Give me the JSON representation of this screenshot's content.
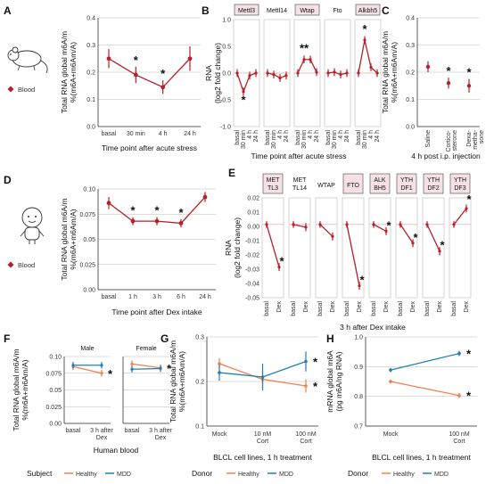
{
  "colors": {
    "red": "#b5202a",
    "healthy": "#f08050",
    "mdd": "#1f7fb8",
    "grid": "#bbbbbb",
    "highlight": "#f5e1e6"
  },
  "panelA": {
    "letter": "A",
    "ylabel": [
      "Total RNA global m6A/m",
      "%(m6A+m6Am/A)"
    ],
    "xlabel": "Time point after acute stress",
    "legend": "Blood",
    "icon": "mouse-icon",
    "chart_data": {
      "type": "line",
      "categories": [
        "basal",
        "30 min",
        "4 h",
        "24 h"
      ],
      "values": [
        0.25,
        0.19,
        0.145,
        0.25
      ],
      "err": [
        0.035,
        0.03,
        0.025,
        0.045
      ],
      "ylim": [
        0,
        0.4
      ],
      "yticks": [
        "0.0",
        "0.1",
        "0.2",
        "0.3",
        "0.4"
      ],
      "stars": [
        "",
        "*",
        "*",
        ""
      ]
    }
  },
  "panelB": {
    "letter": "B",
    "ylabel": [
      "RNA",
      "(log2 fold change)"
    ],
    "xlabel": "Time point after acute stress",
    "chart_data": {
      "type": "line",
      "ylim": [
        -1.1,
        1.1
      ],
      "yticks": [
        "-1.0",
        "-0.5",
        "0.0",
        "0.5",
        "1.0"
      ],
      "categories": [
        "basal",
        "30 min",
        "4 h",
        "24 h"
      ],
      "facets": [
        {
          "name": "Mettl3",
          "highlight": true,
          "values": [
            0,
            -0.38,
            -0.05,
            0
          ],
          "stars": [
            "",
            "*",
            "",
            ""
          ]
        },
        {
          "name": "Mettl14",
          "highlight": false,
          "values": [
            0,
            -0.03,
            -0.1,
            -0.05
          ],
          "stars": [
            "",
            "",
            "",
            ""
          ]
        },
        {
          "name": "Wtap",
          "highlight": true,
          "values": [
            0,
            0.28,
            0.28,
            0.02
          ],
          "stars": [
            "",
            "**",
            "",
            ""
          ]
        },
        {
          "name": "Fto",
          "highlight": false,
          "values": [
            0,
            0.02,
            -0.03,
            0.0
          ],
          "stars": [
            "",
            "",
            "",
            ""
          ]
        },
        {
          "name": "Alkbh5",
          "highlight": true,
          "values": [
            0,
            0.68,
            0.12,
            0.0
          ],
          "stars": [
            "",
            "*",
            "",
            ""
          ]
        }
      ]
    }
  },
  "panelC": {
    "letter": "C",
    "ylabel": [
      "Total RNA global m6A/m",
      "%(m6A+m6Am/A)"
    ],
    "xlabel": "4 h post i.p. injection",
    "chart_data": {
      "type": "scatter",
      "categories": [
        "Saline",
        "Cortico-sterone",
        "Dexa-metha-sone"
      ],
      "catlines": [
        [
          "Saline"
        ],
        [
          "Cortico-",
          "sterone"
        ],
        [
          "Dexa-",
          "metha-",
          "sone"
        ]
      ],
      "values": [
        0.22,
        0.16,
        0.15
      ],
      "err": [
        0.02,
        0.02,
        0.025
      ],
      "ylim": [
        0,
        0.4
      ],
      "yticks": [
        "0.0",
        "0.1",
        "0.2",
        "0.3",
        "0.4"
      ],
      "stars": [
        "",
        "*",
        "*"
      ]
    }
  },
  "panelD": {
    "letter": "D",
    "ylabel": [
      "Total RNA global m6A/m",
      "%(m6A+m6Am/A)"
    ],
    "xlabel": "Time point after Dex intake",
    "legend": "Blood",
    "icon": "human-icon",
    "chart_data": {
      "type": "line",
      "categories": [
        "basal",
        "1 h",
        "3 h",
        "6 h",
        "24 h"
      ],
      "values": [
        0.086,
        0.068,
        0.068,
        0.066,
        0.092
      ],
      "err": [
        0.006,
        0.004,
        0.004,
        0.004,
        0.005
      ],
      "ylim": [
        0,
        0.1
      ],
      "yticks": [
        "0.00",
        "0.025",
        "0.05",
        "0.075",
        "0.10"
      ],
      "stars": [
        "",
        "*",
        "*",
        "*",
        ""
      ]
    }
  },
  "panelE": {
    "letter": "E",
    "ylabel": [
      "RNA",
      "(log2 fold change)"
    ],
    "xlabel": "3 h after Dex intake",
    "chart_data": {
      "type": "line",
      "ylim": [
        -0.055,
        0.02
      ],
      "yticks": [
        "-0.05",
        "-0.04",
        "-0.03",
        "-0.02",
        "-0.01",
        "0.00",
        "0.01",
        "0.02"
      ],
      "categories": [
        "basal",
        "Dex"
      ],
      "facets": [
        {
          "label": [
            "MET",
            "TL3"
          ],
          "highlight": true,
          "values": [
            0,
            -0.032
          ],
          "stars": [
            "",
            "*"
          ]
        },
        {
          "label": [
            "MET",
            "TL14"
          ],
          "highlight": false,
          "values": [
            0,
            -0.002
          ],
          "stars": [
            "",
            ""
          ]
        },
        {
          "label": [
            "WTAP"
          ],
          "highlight": false,
          "values": [
            0,
            -0.009
          ],
          "stars": [
            "",
            ""
          ]
        },
        {
          "label": [
            "FTO"
          ],
          "highlight": true,
          "values": [
            0,
            -0.046
          ],
          "stars": [
            "",
            "*"
          ]
        },
        {
          "label": [
            "ALK",
            "BH5"
          ],
          "highlight": true,
          "values": [
            0,
            -0.005
          ],
          "stars": [
            "",
            "*"
          ]
        },
        {
          "label": [
            "YTH",
            "DF1"
          ],
          "highlight": true,
          "values": [
            0,
            -0.014
          ],
          "stars": [
            "",
            "*"
          ]
        },
        {
          "label": [
            "YTH",
            "DF2"
          ],
          "highlight": true,
          "values": [
            0,
            -0.02
          ],
          "stars": [
            "",
            "*"
          ]
        },
        {
          "label": [
            "YTH",
            "DF3"
          ],
          "highlight": true,
          "values": [
            0,
            0.012
          ],
          "stars": [
            "",
            "*"
          ]
        }
      ]
    }
  },
  "panelF": {
    "letter": "F",
    "ylabel": [
      "Total RNA global m6A/m",
      "%(m6A+m6Am/A)"
    ],
    "xlabel": "Human blood",
    "chart_data": {
      "type": "line",
      "ylim": [
        0,
        0.1
      ],
      "yticks": [
        "0.00",
        "0.025",
        "0.05",
        "0.075",
        "0.10"
      ],
      "categories": [
        "basal",
        "3 h after Dex"
      ],
      "catlines": [
        [
          "basal"
        ],
        [
          "3 h after",
          "Dex"
        ]
      ],
      "facets": [
        {
          "name": "Male",
          "series": [
            {
              "name": "Healthy",
              "values": [
                0.085,
                0.075
              ]
            },
            {
              "name": "MDD",
              "values": [
                0.087,
                0.087
              ]
            }
          ],
          "stars": [
            "Healthy"
          ]
        },
        {
          "name": "Female",
          "series": [
            {
              "name": "Healthy",
              "values": [
                0.089,
                0.083
              ]
            },
            {
              "name": "MDD",
              "values": [
                0.081,
                0.082
              ]
            }
          ],
          "stars": [
            "Healthy"
          ]
        }
      ]
    }
  },
  "panelG": {
    "letter": "G",
    "ylabel": [
      "Total RNA global m6A/m",
      "%(m6A+m6Am/A)"
    ],
    "xlabel": "BLCL cell lines, 1 h treatment",
    "chart_data": {
      "type": "line",
      "categories": [
        "Mock",
        "10 nM Cort",
        "100 nM Cort"
      ],
      "catlines": [
        [
          "Mock"
        ],
        [
          "10 nM",
          "Cort"
        ],
        [
          "100 nM",
          "Cort"
        ]
      ],
      "ylim": [
        0.1,
        0.3
      ],
      "yticks": [
        "0.1",
        "0.2",
        "0.3"
      ],
      "series": [
        {
          "name": "Healthy",
          "values": [
            0.24,
            0.205,
            0.19
          ]
        },
        {
          "name": "MDD",
          "values": [
            0.22,
            0.21,
            0.245
          ]
        }
      ],
      "stars": [
        "Healthy",
        "MDD"
      ]
    }
  },
  "panelH": {
    "letter": "H",
    "ylabel": [
      "mRNA global m6A",
      "(pg m6A/ng RNA)"
    ],
    "xlabel": "BLCL cell lines, 1 h treatment",
    "chart_data": {
      "type": "line",
      "categories": [
        "Mock",
        "100 nM Cort"
      ],
      "catlines": [
        [
          "Mock"
        ],
        [
          "100 nM",
          "Cort"
        ]
      ],
      "ylim": [
        0.7,
        1.05
      ],
      "yticks": [
        "0.7",
        "0.8",
        "0.9",
        "1.0"
      ],
      "series": [
        {
          "name": "Healthy",
          "values": [
            0.875,
            0.82
          ]
        },
        {
          "name": "MDD",
          "values": [
            0.92,
            0.985
          ]
        }
      ],
      "stars": [
        "Healthy",
        "MDD"
      ]
    }
  },
  "legends": {
    "F": {
      "title": "Subject",
      "items": [
        "Healthy",
        "MDD"
      ]
    },
    "G": {
      "title": "Donor",
      "items": [
        "Healthy",
        "MDD"
      ]
    },
    "H": {
      "title": "Donor",
      "items": [
        "Healthy",
        "MDD"
      ]
    }
  }
}
